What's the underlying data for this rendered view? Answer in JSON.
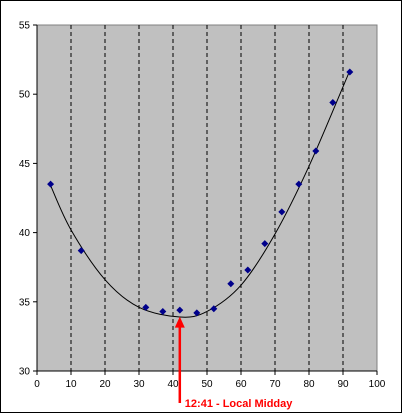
{
  "chart_data": {
    "type": "scatter",
    "xlim": [
      0,
      100
    ],
    "ylim": [
      30,
      55
    ],
    "x_ticks": [
      0,
      10,
      20,
      30,
      40,
      50,
      60,
      70,
      80,
      90,
      100
    ],
    "y_ticks": [
      30,
      35,
      40,
      45,
      50,
      55
    ],
    "vertical_grid": true,
    "horizontal_grid": false,
    "plot_background": "#c0c0c0",
    "marker_color": "#00008b",
    "series": [
      {
        "points": [
          {
            "x": 4,
            "y": 43.5
          },
          {
            "x": 13,
            "y": 38.7
          },
          {
            "x": 32,
            "y": 34.6
          },
          {
            "x": 37,
            "y": 34.3
          },
          {
            "x": 42,
            "y": 34.4
          },
          {
            "x": 47,
            "y": 34.2
          },
          {
            "x": 52,
            "y": 34.5
          },
          {
            "x": 57,
            "y": 36.3
          },
          {
            "x": 62,
            "y": 37.3
          },
          {
            "x": 67,
            "y": 39.2
          },
          {
            "x": 72,
            "y": 41.5
          },
          {
            "x": 77,
            "y": 43.5
          },
          {
            "x": 82,
            "y": 45.9
          },
          {
            "x": 87,
            "y": 49.4
          },
          {
            "x": 92,
            "y": 51.6
          }
        ]
      }
    ],
    "trendline": {
      "type": "polynomial",
      "x_range": [
        4,
        92
      ],
      "color": "#000000",
      "points": [
        {
          "x": 4,
          "y": 43.4
        },
        {
          "x": 10,
          "y": 40.2
        },
        {
          "x": 20,
          "y": 36.6
        },
        {
          "x": 30,
          "y": 34.6
        },
        {
          "x": 42,
          "y": 33.9
        },
        {
          "x": 50,
          "y": 34.3
        },
        {
          "x": 60,
          "y": 36.2
        },
        {
          "x": 70,
          "y": 39.9
        },
        {
          "x": 80,
          "y": 44.8
        },
        {
          "x": 92,
          "y": 51.7
        }
      ]
    },
    "annotation": {
      "text": "12:41 - Local Midday",
      "x": 42,
      "y": 34,
      "color": "#ff0000"
    }
  }
}
